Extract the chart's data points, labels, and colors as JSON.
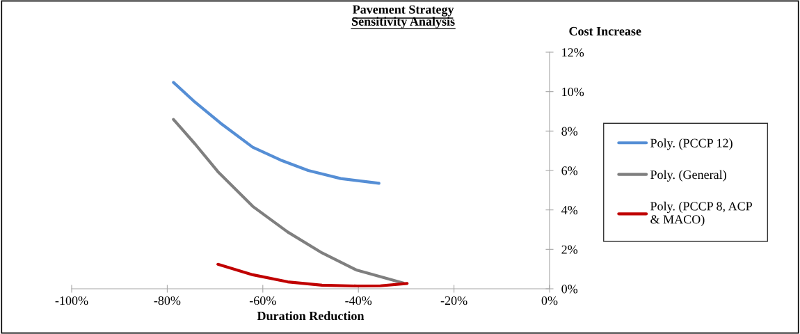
{
  "chart_data": {
    "type": "line",
    "title": "Pavement Strategy\nSensitivity Analysis",
    "xlabel": "Duration Reduction",
    "ylabel": "Cost Increase",
    "series": [
      {
        "name": "Poly. (PCCP 12)",
        "color": "#558ed5",
        "x": [
          -78.7,
          -74.2,
          -68.9,
          -62.1,
          -56.3,
          -50.5,
          -43.7,
          -35.7
        ],
        "values": [
          10.47,
          9.47,
          8.41,
          7.18,
          6.53,
          6.0,
          5.59,
          5.35
        ]
      },
      {
        "name": "Poly. (General)",
        "color": "#7f7f7f",
        "x": [
          -78.7,
          -74.2,
          -69.4,
          -62.1,
          -54.8,
          -47.6,
          -40.3,
          -30.6
        ],
        "values": [
          8.59,
          7.35,
          5.94,
          4.18,
          2.88,
          1.82,
          0.94,
          0.29
        ]
      },
      {
        "name": "Poly. (PCCP 8, ACP\n& MACO)",
        "color": "#c00000",
        "x": [
          -69.4,
          -62.1,
          -54.8,
          -47.6,
          -40.3,
          -35.4,
          -29.8
        ],
        "values": [
          1.24,
          0.71,
          0.35,
          0.18,
          0.14,
          0.15,
          0.27
        ]
      }
    ],
    "xlim": [
      -100,
      0
    ],
    "ylim": [
      0,
      12
    ],
    "xticks": [
      {
        "value": -100,
        "label": "-100%"
      },
      {
        "value": -80,
        "label": "-80%"
      },
      {
        "value": -60,
        "label": "-60%"
      },
      {
        "value": -40,
        "label": "-40%"
      },
      {
        "value": -20,
        "label": "-20%"
      },
      {
        "value": 0,
        "label": "0%"
      }
    ],
    "yticks": [
      {
        "value": 0,
        "label": "0%"
      },
      {
        "value": 2,
        "label": "2%"
      },
      {
        "value": 4,
        "label": "4%"
      },
      {
        "value": 6,
        "label": "6%"
      },
      {
        "value": 8,
        "label": "8%"
      },
      {
        "value": 10,
        "label": "10%"
      },
      {
        "value": 12,
        "label": "12%"
      }
    ],
    "grid": false,
    "legend": "right",
    "marker": "none",
    "line_style": "solid"
  }
}
